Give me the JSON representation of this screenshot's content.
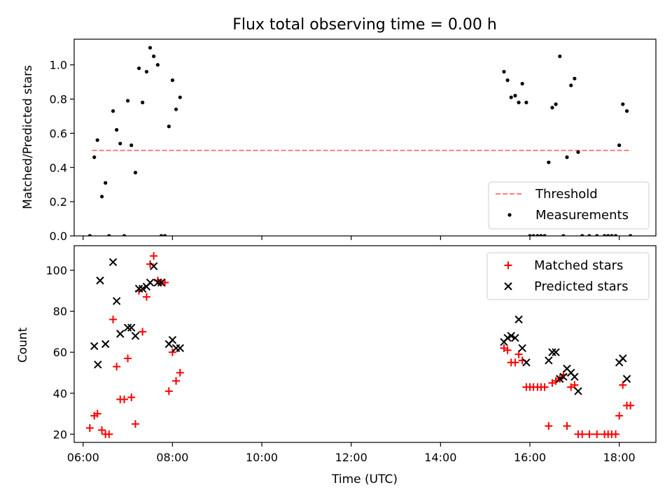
{
  "chart_data": [
    {
      "type": "scatter",
      "title": "Flux total observing time = 0.00 h",
      "ylabel": "Matched/Predicted stars",
      "xlabel": "",
      "xlim": [
        5.8,
        18.82
      ],
      "ylim": [
        0.0,
        1.15
      ],
      "x_ticks": [
        6,
        8,
        10,
        12,
        14,
        16,
        18
      ],
      "y_ticks": [
        0.0,
        0.2,
        0.4,
        0.6,
        0.8,
        1.0
      ],
      "y_tick_labels": [
        "0.0",
        "0.2",
        "0.4",
        "0.6",
        "0.8",
        "1.0"
      ],
      "legend_position": "lower-right",
      "threshold": {
        "name": "Threshold",
        "y": 0.5,
        "x_range": [
          6.2,
          18.27
        ],
        "color": "#ff7f7f",
        "style": "dashed"
      },
      "series": [
        {
          "name": "Measurements",
          "marker": "dot",
          "color": "#000000",
          "x": [
            6.15,
            6.25,
            6.32,
            6.42,
            6.5,
            6.58,
            6.67,
            6.75,
            6.83,
            6.92,
            7.0,
            7.08,
            7.17,
            7.25,
            7.33,
            7.42,
            7.5,
            7.58,
            7.67,
            7.75,
            7.83,
            7.92,
            8.0,
            8.08,
            8.17,
            15.42,
            15.5,
            15.58,
            15.67,
            15.75,
            15.83,
            15.92,
            16.0,
            16.08,
            16.17,
            16.25,
            16.33,
            16.42,
            16.5,
            16.58,
            16.67,
            16.75,
            16.83,
            16.92,
            17.0,
            17.08,
            17.17,
            17.33,
            17.5,
            17.67,
            17.75,
            17.83,
            17.92,
            18.0,
            18.08,
            18.17,
            18.25
          ],
          "y": [
            0.0,
            0.46,
            0.56,
            0.23,
            0.31,
            0.0,
            0.73,
            0.62,
            0.54,
            0.0,
            0.79,
            0.53,
            0.37,
            0.98,
            0.78,
            0.96,
            1.1,
            1.05,
            1.0,
            0.0,
            0.0,
            0.64,
            0.91,
            0.74,
            0.81,
            0.96,
            0.91,
            0.81,
            0.82,
            0.78,
            0.89,
            0.78,
            0.0,
            0.0,
            0.0,
            0.0,
            0.0,
            0.43,
            0.75,
            0.77,
            1.05,
            0.0,
            0.46,
            0.88,
            0.92,
            0.49,
            0.0,
            0.0,
            0.0,
            0.0,
            0.0,
            0.0,
            0.0,
            0.53,
            0.77,
            0.73,
            0.0
          ]
        }
      ]
    },
    {
      "type": "scatter",
      "title": "",
      "xlabel": "Time (UTC)",
      "ylabel": "Count",
      "xlim": [
        5.8,
        18.82
      ],
      "ylim": [
        16,
        112
      ],
      "x_ticks": [
        6,
        8,
        10,
        12,
        14,
        16,
        18
      ],
      "x_tick_labels": [
        "06:00",
        "08:00",
        "10:00",
        "12:00",
        "14:00",
        "16:00",
        "18:00"
      ],
      "y_ticks": [
        20,
        40,
        60,
        80,
        100
      ],
      "y_tick_labels": [
        "20",
        "40",
        "60",
        "80",
        "100"
      ],
      "legend_position": "upper-right",
      "series": [
        {
          "name": "Matched stars",
          "marker": "plus",
          "color": "#ff0000",
          "x": [
            6.15,
            6.25,
            6.32,
            6.42,
            6.5,
            6.58,
            6.67,
            6.75,
            6.83,
            6.92,
            7.0,
            7.08,
            7.17,
            7.25,
            7.33,
            7.42,
            7.5,
            7.58,
            7.67,
            7.75,
            7.83,
            7.92,
            8.0,
            8.08,
            8.17,
            15.42,
            15.5,
            15.58,
            15.67,
            15.75,
            15.83,
            15.92,
            16.0,
            16.08,
            16.17,
            16.25,
            16.33,
            16.42,
            16.5,
            16.58,
            16.67,
            16.75,
            16.83,
            16.92,
            17.0,
            17.08,
            17.17,
            17.33,
            17.5,
            17.67,
            17.75,
            17.83,
            17.92,
            18.0,
            18.08,
            18.17,
            18.25
          ],
          "y": [
            23,
            29,
            30,
            22,
            20,
            20,
            76,
            53,
            37,
            37,
            57,
            38,
            25,
            90,
            70,
            87,
            103,
            107,
            95,
            94,
            94,
            41,
            60,
            46,
            50,
            62,
            61,
            55,
            55,
            59,
            56,
            43,
            43,
            43,
            43,
            43,
            43,
            24,
            45,
            46,
            47,
            49,
            24,
            43,
            44,
            20,
            20,
            20,
            20,
            20,
            20,
            20,
            20,
            29,
            44,
            34,
            34
          ]
        },
        {
          "name": "Predicted stars",
          "marker": "x",
          "color": "#000000",
          "x": [
            6.25,
            6.33,
            6.38,
            6.5,
            6.67,
            6.75,
            6.83,
            7.0,
            7.08,
            7.17,
            7.25,
            7.33,
            7.42,
            7.5,
            7.58,
            7.67,
            7.75,
            7.92,
            8.0,
            8.08,
            8.17,
            15.42,
            15.5,
            15.58,
            15.67,
            15.75,
            15.83,
            15.92,
            16.42,
            16.5,
            16.58,
            16.67,
            16.75,
            16.83,
            16.92,
            17.0,
            17.08,
            18.0,
            18.08,
            18.17
          ],
          "y": [
            63,
            54,
            95,
            64,
            104,
            85,
            69,
            72,
            72,
            68,
            91,
            91,
            92,
            94,
            102,
            94,
            94,
            64,
            66,
            62,
            62,
            65,
            67,
            68,
            67,
            76,
            62,
            55,
            56,
            60,
            60,
            47,
            48,
            52,
            50,
            48,
            41,
            55,
            57,
            47
          ]
        }
      ]
    }
  ]
}
